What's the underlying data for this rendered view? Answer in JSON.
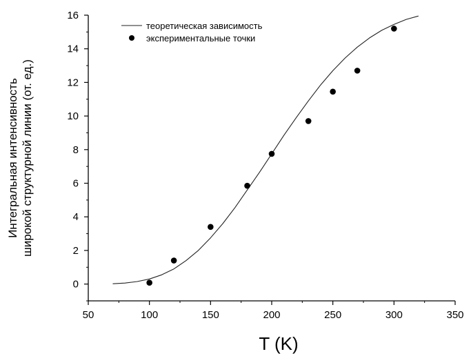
{
  "chart_data": {
    "type": "line",
    "xlabel": "T (K)",
    "ylabel_line1": "Интегральная интенсивность",
    "ylabel_line2": "широкой структурной линии (от. ед.)",
    "xlim": [
      50,
      350
    ],
    "ylim": [
      -1,
      16
    ],
    "x_ticks": [
      50,
      100,
      150,
      200,
      250,
      300,
      350
    ],
    "y_ticks": [
      0,
      2,
      4,
      6,
      8,
      10,
      12,
      14,
      16
    ],
    "grid": false,
    "legend_position": "top-left",
    "colors": {
      "line": "#222222",
      "points": "#000000"
    },
    "series": [
      {
        "name": "теоретическая зависимость",
        "type": "line",
        "x": [
          70,
          80,
          90,
          100,
          110,
          120,
          130,
          140,
          150,
          160,
          170,
          180,
          190,
          200,
          210,
          220,
          230,
          240,
          250,
          260,
          270,
          280,
          290,
          300,
          310,
          320
        ],
        "y": [
          0.02,
          0.06,
          0.15,
          0.3,
          0.55,
          0.9,
          1.4,
          2.0,
          2.75,
          3.6,
          4.55,
          5.6,
          6.65,
          7.75,
          8.85,
          9.9,
          10.9,
          11.85,
          12.7,
          13.45,
          14.1,
          14.65,
          15.1,
          15.45,
          15.75,
          15.95
        ]
      },
      {
        "name": "экспериментальные точки",
        "type": "scatter",
        "x": [
          100,
          120,
          150,
          180,
          200,
          230,
          250,
          270,
          300
        ],
        "y": [
          0.08,
          1.4,
          3.4,
          5.85,
          7.75,
          9.7,
          11.45,
          12.7,
          15.2
        ]
      }
    ]
  }
}
